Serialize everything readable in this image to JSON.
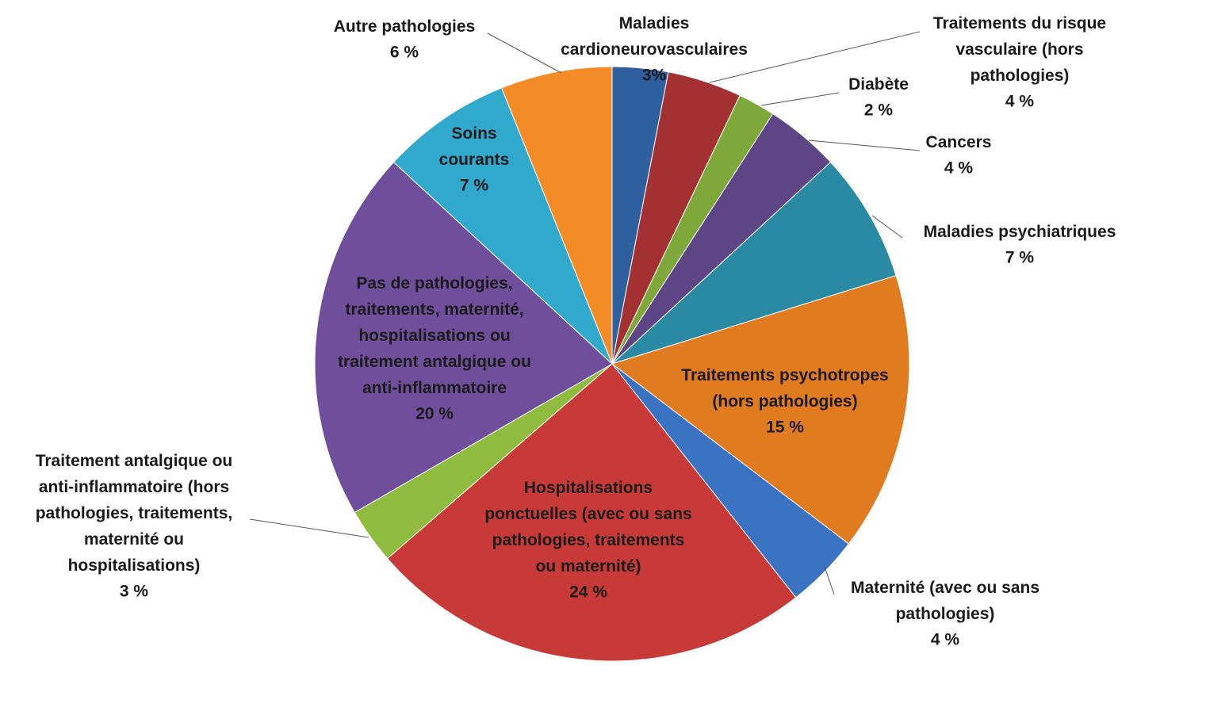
{
  "chart_data": {
    "type": "pie",
    "categories": [
      "Maladies cardioneurovasculaires",
      "Traitements du risque vasculaire (hors pathologies)",
      "Diabète",
      "Cancers",
      "Maladies psychiatriques",
      "Traitements psychotropes (hors pathologies)",
      "Maternité (avec ou sans pathologies)",
      "Hospitalisations ponctuelles (avec ou sans pathologies, traitements ou maternité)",
      "Traitement antalgique ou anti-inflammatoire (hors pathologies, traitements, maternité ou hospitalisations)",
      "Pas de pathologies, traitements, maternité, hospitalisations ou traitement antalgique ou anti-inflammatoire",
      "Soins courants",
      "Autre pathologies"
    ],
    "values": [
      3,
      4,
      2,
      4,
      7,
      15,
      4,
      24,
      3,
      20,
      7,
      6
    ],
    "value_labels": [
      "3%",
      "4 %",
      "2 %",
      "4 %",
      "7 %",
      "15 %",
      "4 %",
      "24 %",
      "3 %",
      "20 %",
      "7 %",
      "6 %"
    ],
    "colors": [
      "#2e5f9e",
      "#a33131",
      "#7fa83a",
      "#5e4585",
      "#2a8aa3",
      "#e07b20",
      "#3a73c2",
      "#c73a37",
      "#8fbc3e",
      "#6f4f9c",
      "#31a9cc",
      "#f38b26"
    ]
  }
}
